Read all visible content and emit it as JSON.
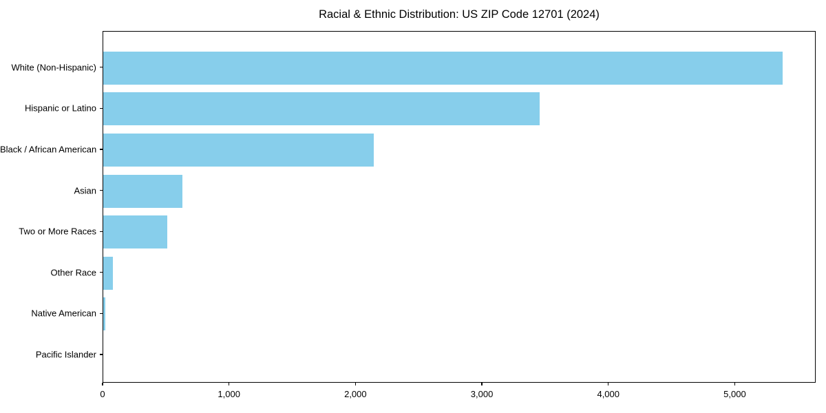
{
  "chart_data": {
    "type": "bar",
    "orientation": "horizontal",
    "title": "Racial & Ethnic Distribution: US ZIP Code 12701 (2024)",
    "categories": [
      "White (Non-Hispanic)",
      "Hispanic or Latino",
      "Black / African American",
      "Asian",
      "Two or More Races",
      "Other Race",
      "Native American",
      "Pacific Islander"
    ],
    "values": [
      5375,
      3450,
      2140,
      625,
      505,
      75,
      15,
      0
    ],
    "xlabel": "",
    "ylabel": "",
    "xlim": [
      0,
      5640
    ],
    "xticks": [
      0,
      1000,
      2000,
      3000,
      4000,
      5000
    ],
    "xtick_labels": [
      "0",
      "1,000",
      "2,000",
      "3,000",
      "4,000",
      "5,000"
    ],
    "bar_color": "#87CEEB",
    "background_color": "#FFFFFF",
    "axis_color": "#000000",
    "grid": false,
    "legend": null
  }
}
